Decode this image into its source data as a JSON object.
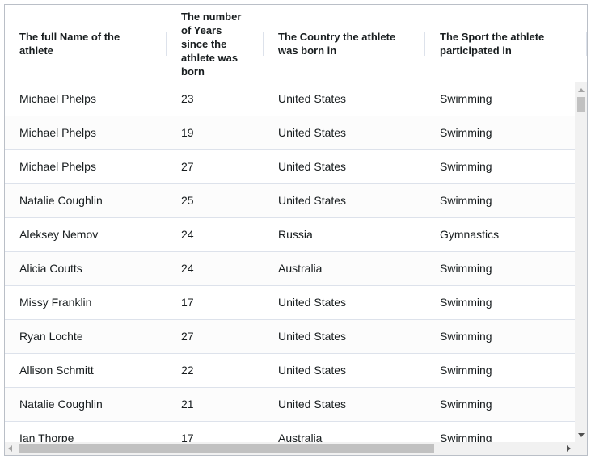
{
  "header": {
    "columns": [
      "The full Name of the athlete",
      "The number of Years since the athlete was born",
      "The Country the athlete was born in",
      "The Sport the athlete participated in"
    ]
  },
  "table": {
    "rows": [
      [
        "Michael Phelps",
        23,
        "United States",
        "Swimming"
      ],
      [
        "Michael Phelps",
        19,
        "United States",
        "Swimming"
      ],
      [
        "Michael Phelps",
        27,
        "United States",
        "Swimming"
      ],
      [
        "Natalie Coughlin",
        25,
        "United States",
        "Swimming"
      ],
      [
        "Aleksey Nemov",
        24,
        "Russia",
        "Gymnastics"
      ],
      [
        "Alicia Coutts",
        24,
        "Australia",
        "Swimming"
      ],
      [
        "Missy Franklin",
        17,
        "United States",
        "Swimming"
      ],
      [
        "Ryan Lochte",
        27,
        "United States",
        "Swimming"
      ],
      [
        "Allison Schmitt",
        22,
        "United States",
        "Swimming"
      ],
      [
        "Natalie Coughlin",
        21,
        "United States",
        "Swimming"
      ],
      [
        "Ian Thorpe",
        17,
        "Australia",
        "Swimming"
      ]
    ]
  }
}
